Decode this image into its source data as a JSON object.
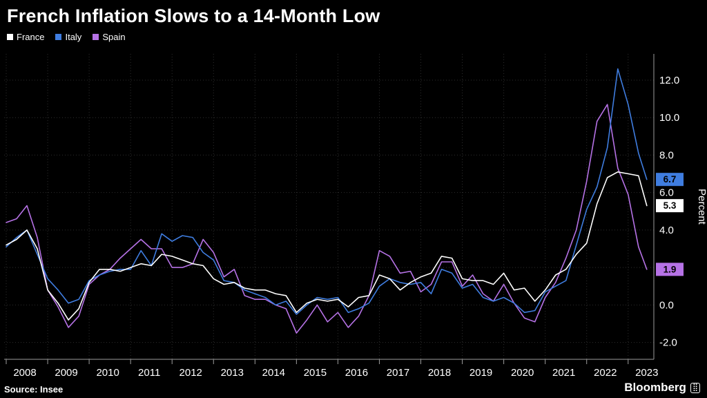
{
  "footer": {
    "source": "Source: Insee",
    "brand": "Bloomberg"
  },
  "chart_data": {
    "type": "line",
    "title": "French Inflation Slows to a 14-Month Low",
    "xlabel": "",
    "ylabel": "Percent",
    "legend_position": "top-left",
    "grid": true,
    "colors": {
      "background": "#000000",
      "grid": "#2f2f2f",
      "axis": "#9e9e9e",
      "text": "#ffffff"
    },
    "xlim": [
      2007.95,
      2023.62
    ],
    "ylim": [
      -2.9,
      13.4
    ],
    "x_ticks": [
      2008,
      2009,
      2010,
      2011,
      2012,
      2013,
      2014,
      2015,
      2016,
      2017,
      2018,
      2019,
      2020,
      2021,
      2022,
      2023
    ],
    "y_ticks": [
      -2,
      0,
      2,
      4,
      6,
      8,
      10,
      12
    ],
    "x": [
      2008,
      2008.25,
      2008.5,
      2008.75,
      2009,
      2009.25,
      2009.5,
      2009.75,
      2010,
      2010.25,
      2010.5,
      2010.75,
      2011,
      2011.25,
      2011.5,
      2011.75,
      2012,
      2012.25,
      2012.5,
      2012.75,
      2013,
      2013.25,
      2013.5,
      2013.75,
      2014,
      2014.25,
      2014.5,
      2014.75,
      2015,
      2015.25,
      2015.5,
      2015.75,
      2016,
      2016.25,
      2016.5,
      2016.75,
      2017,
      2017.25,
      2017.5,
      2017.75,
      2018,
      2018.25,
      2018.5,
      2018.75,
      2019,
      2019.25,
      2019.5,
      2019.75,
      2020,
      2020.25,
      2020.5,
      2020.75,
      2021,
      2021.25,
      2021.5,
      2021.75,
      2022,
      2022.25,
      2022.5,
      2022.75,
      2023,
      2023.25,
      2023.45
    ],
    "series": [
      {
        "name": "France",
        "color": "#ffffff",
        "end_label": "5.3",
        "values": [
          3.2,
          3.5,
          4.0,
          3.0,
          0.8,
          0.1,
          -0.8,
          -0.2,
          1.2,
          1.9,
          1.9,
          1.8,
          2.0,
          2.2,
          2.1,
          2.7,
          2.6,
          2.4,
          2.2,
          2.1,
          1.4,
          1.1,
          1.2,
          0.9,
          0.8,
          0.8,
          0.6,
          0.5,
          -0.4,
          0.1,
          0.3,
          0.2,
          0.3,
          -0.1,
          0.4,
          0.5,
          1.6,
          1.4,
          0.8,
          1.2,
          1.5,
          1.7,
          2.6,
          2.5,
          1.4,
          1.3,
          1.3,
          1.1,
          1.7,
          0.8,
          0.9,
          0.2,
          0.8,
          1.6,
          1.9,
          2.7,
          3.3,
          5.4,
          6.8,
          7.1,
          7.0,
          6.9,
          5.3
        ]
      },
      {
        "name": "Italy",
        "color": "#3f7de0",
        "end_label": "6.7",
        "values": [
          3.1,
          3.6,
          4.0,
          2.7,
          1.4,
          0.8,
          0.1,
          0.3,
          1.3,
          1.6,
          1.8,
          1.9,
          1.9,
          2.9,
          2.1,
          3.8,
          3.4,
          3.7,
          3.6,
          2.8,
          2.4,
          1.3,
          1.2,
          0.8,
          0.6,
          0.4,
          0.0,
          0.2,
          -0.5,
          0.0,
          0.4,
          0.3,
          0.4,
          -0.4,
          -0.2,
          0.1,
          1.0,
          1.4,
          1.2,
          1.1,
          1.2,
          0.6,
          1.9,
          1.7,
          0.9,
          1.1,
          0.4,
          0.2,
          0.4,
          0.1,
          -0.4,
          -0.3,
          0.7,
          1.0,
          1.3,
          3.2,
          5.1,
          6.3,
          8.4,
          12.6,
          10.7,
          8.1,
          6.7
        ]
      },
      {
        "name": "Spain",
        "color": "#b672e6",
        "end_label": "1.9",
        "values": [
          4.4,
          4.6,
          5.3,
          3.6,
          0.8,
          -0.1,
          -1.2,
          -0.6,
          1.1,
          1.6,
          1.9,
          2.5,
          3.0,
          3.5,
          3.0,
          3.0,
          2.0,
          2.0,
          2.2,
          3.5,
          2.8,
          1.5,
          1.9,
          0.5,
          0.3,
          0.3,
          0.0,
          -0.2,
          -1.5,
          -0.8,
          0.0,
          -0.9,
          -0.4,
          -1.2,
          -0.6,
          0.5,
          2.9,
          2.6,
          1.7,
          1.8,
          0.7,
          1.1,
          2.3,
          2.3,
          1.0,
          1.6,
          0.6,
          0.2,
          1.1,
          0.1,
          -0.7,
          -0.9,
          0.4,
          1.2,
          2.5,
          4.0,
          6.6,
          9.8,
          10.7,
          7.3,
          5.9,
          3.1,
          1.9
        ]
      }
    ]
  }
}
